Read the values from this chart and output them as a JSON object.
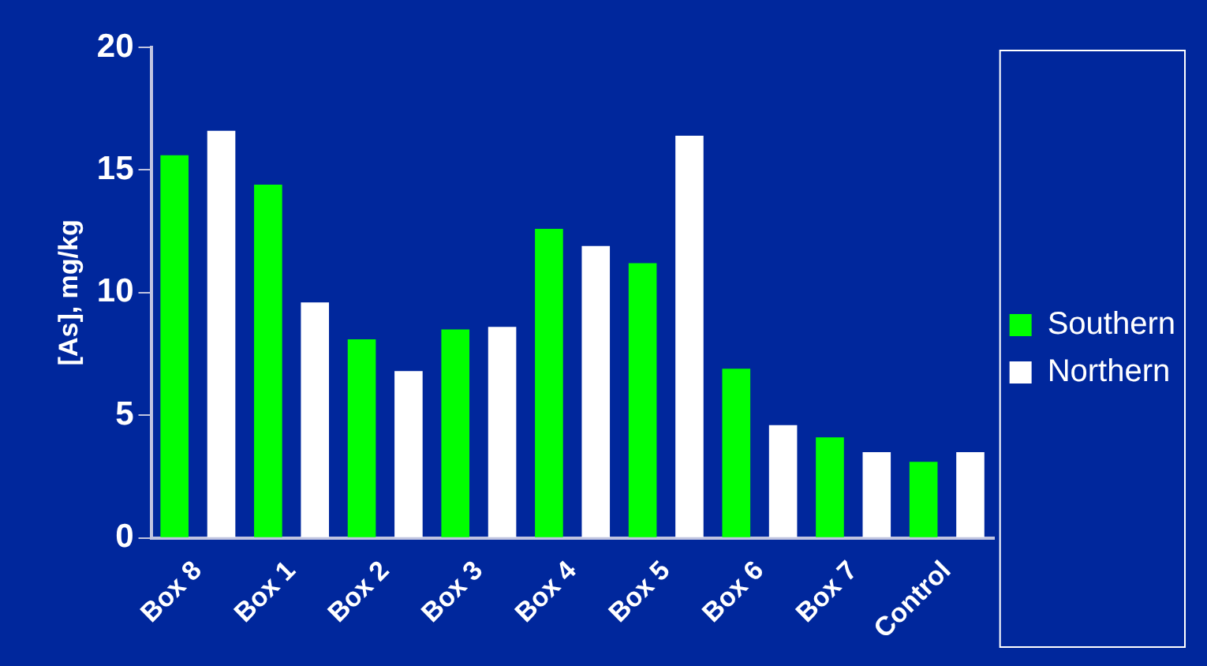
{
  "chart_data": {
    "type": "bar",
    "ylabel": "[As], mg/kg",
    "categories": [
      "Box 8",
      "Box 1",
      "Box 2",
      "Box 3",
      "Box 4",
      "Box 5",
      "Box 6",
      "Box 7",
      "Control"
    ],
    "series": [
      {
        "name": "Southern",
        "color": "#00ff00",
        "values": [
          15.6,
          14.4,
          8.1,
          8.5,
          12.6,
          11.2,
          6.9,
          4.1,
          3.1
        ]
      },
      {
        "name": "Northern",
        "color": "#ffffff",
        "values": [
          16.6,
          9.6,
          6.8,
          8.6,
          11.9,
          16.4,
          4.6,
          3.5,
          3.5
        ]
      }
    ],
    "ylim": [
      0,
      20
    ],
    "yticks": [
      0,
      5,
      10,
      15,
      20
    ],
    "grid": false,
    "legend": "right"
  }
}
